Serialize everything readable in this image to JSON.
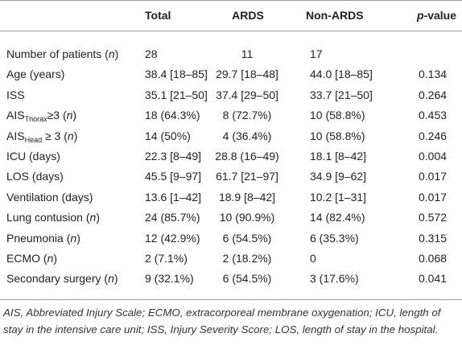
{
  "table": {
    "header": [
      "Total",
      "ARDS",
      "Non-ARDS",
      [
        {
          "i": "p"
        },
        "-value"
      ]
    ],
    "rows": [
      {
        "label": [
          "Number of patients (",
          {
            "i": "n"
          },
          ")"
        ],
        "cells": [
          "28",
          "11",
          "17",
          ""
        ]
      },
      {
        "label": [
          "Age (years)"
        ],
        "cells": [
          "38.4 [18–85]",
          "29.7 [18–48]",
          "44.0 [18–85]",
          "0.134"
        ]
      },
      {
        "label": [
          "ISS"
        ],
        "cells": [
          "35.1 [21–50]",
          "37.4 [29–50]",
          "33.7 [21–50]",
          "0.264"
        ]
      },
      {
        "label": [
          "AIS",
          {
            "sub": "Thorax"
          },
          "≥3 (",
          {
            "i": "n"
          },
          ")"
        ],
        "cells": [
          "18 (64.3%)",
          "8 (72.7%)",
          "10 (58.8%)",
          "0.453"
        ]
      },
      {
        "label": [
          "AIS",
          {
            "sub": "Head"
          },
          " ≥ 3 (",
          {
            "i": "n"
          },
          ")"
        ],
        "cells": [
          "14 (50%)",
          "4 (36.4%)",
          "10 (58.8%)",
          "0.246"
        ]
      },
      {
        "label": [
          "ICU (days)"
        ],
        "cells": [
          "22.3 [8–49]",
          "28.8 (16–49)",
          "18.1 [8–42]",
          "0.004"
        ]
      },
      {
        "label": [
          "LOS (days)"
        ],
        "cells": [
          "45.5 [9–97]",
          "61.7 [21–97]",
          "34.9 [9–62]",
          "0.017"
        ]
      },
      {
        "label": [
          "Ventilation (days)"
        ],
        "cells": [
          "13.6 [1–42]",
          "18.9 [8–42]",
          "10.2 [1–31]",
          "0.017"
        ]
      },
      {
        "label": [
          "Lung contusion (",
          {
            "i": "n"
          },
          ")"
        ],
        "cells": [
          "24 (85.7%)",
          "10 (90.9%)",
          "14 (82.4%)",
          "0.572"
        ]
      },
      {
        "label": [
          "Pneumonia (",
          {
            "i": "n"
          },
          ")"
        ],
        "cells": [
          "12 (42.9%)",
          "6 (54.5%)",
          "6 (35.3%)",
          "0.315"
        ]
      },
      {
        "label": [
          "ECMO (",
          {
            "i": "n"
          },
          ")"
        ],
        "cells": [
          "2 (7.1%)",
          "2 (18.2%)",
          "0",
          "0.068"
        ]
      },
      {
        "label": [
          "Secondary surgery (",
          {
            "i": "n"
          },
          ")"
        ],
        "cells": [
          "9 (32.1%)",
          "6 (54.5%)",
          "3 (17.6%)",
          "0.041"
        ]
      }
    ]
  },
  "footnote": "AIS, Abbreviated Injury Scale; ECMO, extracorporeal membrane oxygenation; ICU, length of stay in the intensive care unit; ISS, Injury Severity Score; LOS, length of stay in the hospital."
}
